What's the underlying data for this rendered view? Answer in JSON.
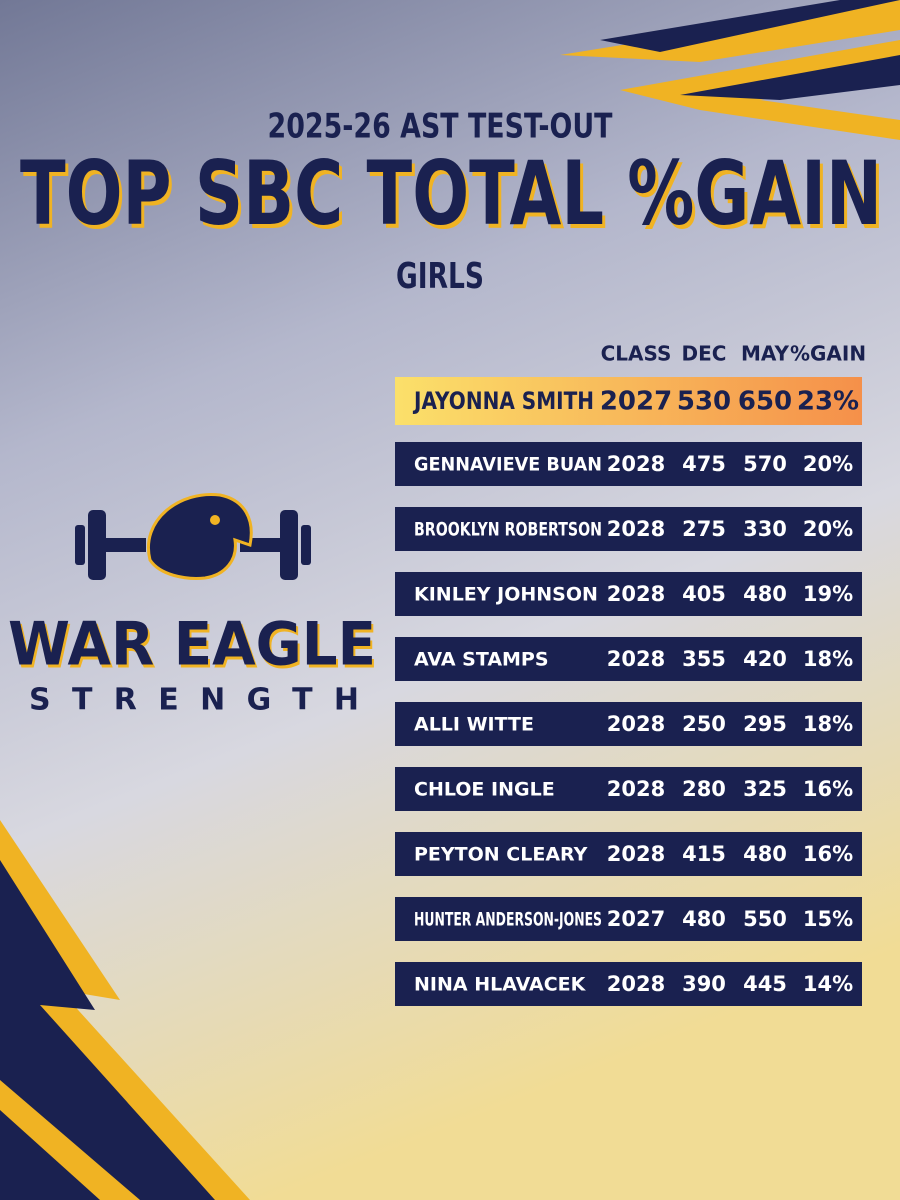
{
  "header": {
    "subtitle": "2025-26 AST TEST-OUT",
    "title": "TOP SBC TOTAL %GAIN",
    "group": "GIRLS"
  },
  "logo": {
    "name": "WAR EAGLE",
    "tagline": "STRENGTH"
  },
  "table": {
    "columns": [
      "CLASS",
      "DEC",
      "MAY",
      "%GAIN"
    ],
    "rows": [
      [
        "JAYONNA SMITH",
        "2027",
        "530",
        "650",
        "23%"
      ],
      [
        "GENNAVIEVE BUAN",
        "2028",
        "475",
        "570",
        "20%"
      ],
      [
        "BROOKLYN ROBERTSON",
        "2028",
        "275",
        "330",
        "20%"
      ],
      [
        "KINLEY JOHNSON",
        "2028",
        "405",
        "480",
        "19%"
      ],
      [
        "AVA STAMPS",
        "2028",
        "355",
        "420",
        "18%"
      ],
      [
        "ALLI WITTE",
        "2028",
        "250",
        "295",
        "18%"
      ],
      [
        "CHLOE INGLE",
        "2028",
        "280",
        "325",
        "16%"
      ],
      [
        "PEYTON CLEARY",
        "2028",
        "415",
        "480",
        "16%"
      ],
      [
        "HUNTER ANDERSON-JONES",
        "2027",
        "480",
        "550",
        "15%"
      ],
      [
        "NINA HLAVACEK",
        "2028",
        "390",
        "445",
        "14%"
      ]
    ]
  }
}
